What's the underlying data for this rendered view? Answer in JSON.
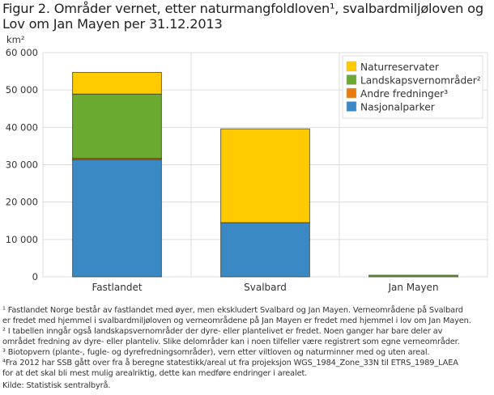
{
  "title": "Figur 2. Områder vernet, etter naturmangfoldloven¹, svalbardmiljøloven og Lov om Jan Mayen per 31.12.2013",
  "chart_data": {
    "type": "bar",
    "stacked": true,
    "title": "Figur 2. Områder vernet, etter naturmangfoldloven¹, svalbardmiljøloven og Lov om Jan Mayen per 31.12.2013",
    "ylabel": "km²",
    "xlabel": "",
    "ylim": [
      0,
      60000
    ],
    "yticks": [
      0,
      10000,
      20000,
      30000,
      40000,
      50000,
      60000
    ],
    "ytick_labels": [
      "0",
      "10 000",
      "20 000",
      "30 000",
      "40 000",
      "50 000",
      "60 000"
    ],
    "grid": true,
    "legend_position": "top-right",
    "categories": [
      "Fastlandet",
      "Svalbard",
      "Jan Mayen"
    ],
    "series": [
      {
        "name": "Nasjonalparker",
        "color": "#3a89c4",
        "values": [
          31400,
          14500,
          0
        ]
      },
      {
        "name": "Andre fredninger³",
        "color": "#e87c10",
        "values": [
          300,
          0,
          0
        ]
      },
      {
        "name": "Landskapsvernområder²",
        "color": "#6aaa30",
        "values": [
          17200,
          0,
          370
        ]
      },
      {
        "name": "Naturreservater",
        "color": "#ffcb00",
        "values": [
          5800,
          25100,
          0
        ]
      }
    ],
    "legend_order": [
      "Naturreservater",
      "Landskapsvernområder²",
      "Andre fredninger³",
      "Nasjonalparker"
    ]
  },
  "footnotes": [
    "¹ Fastlandet Norge består av fastlandet med øyer, men ekskludert Svalbard og Jan Mayen. Verneområdene på Svalbard",
    "er fredet med hjemmel i svalbardmiljøloven og verneområdene på Jan Mayen er fredet med hjemmel i lov om Jan Mayen.",
    "² I tabellen inngår også landskapsvernområder der dyre- eller plantelivet er fredet. Noen ganger har bare deler av",
    "området fredning av dyre- eller planteliv. Slike delområder kan i noen tilfeller være registrert som egne verneområder.",
    "³ Biotopvern (plante-, fugle- og dyrefredningsområder), vern etter viltloven og naturminner med og uten areal.",
    "⁴Fra 2012 har SSB gått over fra å beregne statestikk/areal ut fra projeksjon WGS_1984_Zone_33N til ETRS_1989_LAEA",
    "for at det skal bli mest mulig arealriktig, dette kan medføre endringer i arealet."
  ],
  "source": "Kilde: Statistisk sentralbyrå."
}
